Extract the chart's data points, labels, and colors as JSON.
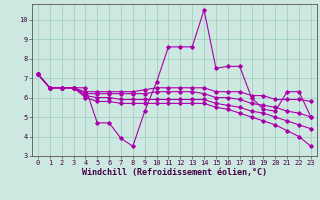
{
  "xlabel": "Windchill (Refroidissement éolien,°C)",
  "x": [
    0,
    1,
    2,
    3,
    4,
    5,
    6,
    7,
    8,
    9,
    10,
    11,
    12,
    13,
    14,
    15,
    16,
    17,
    18,
    19,
    20,
    21,
    22,
    23
  ],
  "series": [
    [
      7.2,
      6.5,
      6.5,
      6.5,
      6.5,
      4.7,
      4.7,
      3.9,
      3.5,
      5.3,
      6.8,
      8.6,
      8.6,
      8.6,
      10.5,
      7.5,
      7.6,
      7.6,
      6.0,
      5.4,
      5.3,
      6.3,
      6.3,
      5.0
    ],
    [
      7.2,
      6.5,
      6.5,
      6.5,
      6.3,
      6.3,
      6.3,
      6.3,
      6.3,
      6.4,
      6.5,
      6.5,
      6.5,
      6.5,
      6.5,
      6.3,
      6.3,
      6.3,
      6.1,
      6.1,
      5.9,
      5.9,
      5.9,
      5.8
    ],
    [
      7.2,
      6.5,
      6.5,
      6.5,
      6.2,
      6.2,
      6.2,
      6.2,
      6.2,
      6.2,
      6.3,
      6.3,
      6.3,
      6.3,
      6.2,
      6.0,
      6.0,
      5.9,
      5.7,
      5.6,
      5.5,
      5.3,
      5.2,
      5.0
    ],
    [
      7.2,
      6.5,
      6.5,
      6.5,
      6.1,
      6.0,
      6.0,
      5.9,
      5.9,
      5.9,
      5.9,
      5.9,
      5.9,
      5.9,
      5.9,
      5.7,
      5.6,
      5.5,
      5.3,
      5.2,
      5.0,
      4.8,
      4.6,
      4.4
    ],
    [
      7.2,
      6.5,
      6.5,
      6.5,
      6.0,
      5.8,
      5.8,
      5.7,
      5.7,
      5.7,
      5.7,
      5.7,
      5.7,
      5.7,
      5.7,
      5.5,
      5.4,
      5.2,
      5.0,
      4.8,
      4.6,
      4.3,
      4.0,
      3.5
    ]
  ],
  "line_color": "#aa00aa",
  "marker": "D",
  "markersize": 1.8,
  "linewidth": 0.8,
  "ylim": [
    3,
    10.8
  ],
  "xlim": [
    -0.5,
    23.5
  ],
  "yticks": [
    3,
    4,
    5,
    6,
    7,
    8,
    9,
    10
  ],
  "xticks": [
    0,
    1,
    2,
    3,
    4,
    5,
    6,
    7,
    8,
    9,
    10,
    11,
    12,
    13,
    14,
    15,
    16,
    17,
    18,
    19,
    20,
    21,
    22,
    23
  ],
  "grid_color": "#99ccbb",
  "bg_color": "#cce8e0",
  "tick_label_size": 5.0,
  "xlabel_size": 6.0
}
